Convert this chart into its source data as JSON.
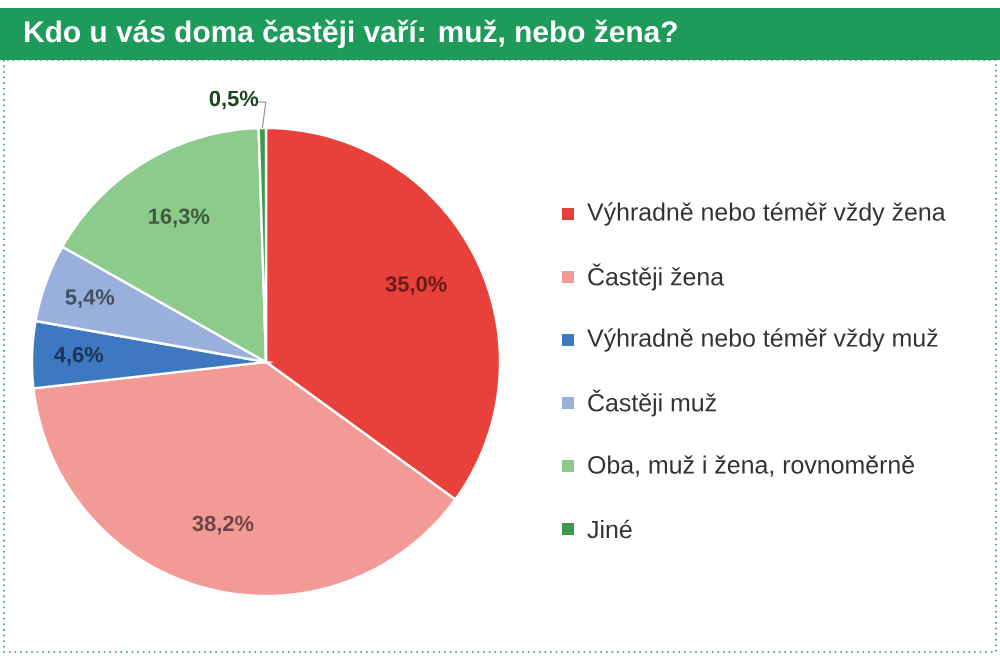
{
  "chart_data": {
    "type": "pie",
    "title": "Kdo u vás doma častěji vaří: muž, nebo žena?",
    "categories": [
      "Výhradně nebo téměř vždy žena",
      "Častěji žena",
      "Výhradně nebo téměř vždy muž",
      "Častěji muž",
      "Oba, muž i žena, rovnoměrně",
      "Jiné"
    ],
    "values": [
      35.0,
      38.2,
      4.6,
      5.4,
      16.3,
      0.5
    ],
    "value_labels": [
      "35,0%",
      "38,2%",
      "4,6%",
      "5,4%",
      "16,3%",
      "0,5%"
    ],
    "colors": [
      "#e8403a",
      "#f29a96",
      "#3d78c0",
      "#98b0db",
      "#8ccb8c",
      "#3a9a48"
    ],
    "legend": "right"
  }
}
